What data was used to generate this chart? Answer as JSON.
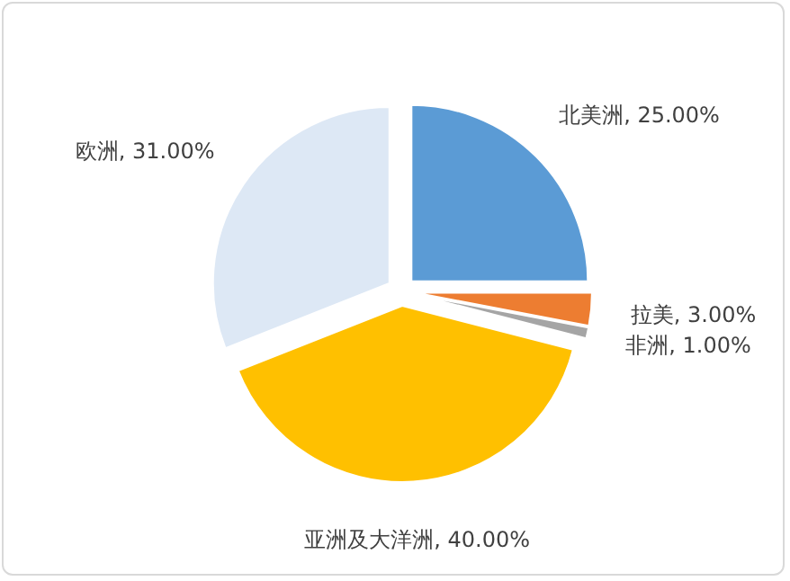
{
  "chart_data": {
    "type": "pie",
    "categories": [
      "北美洲",
      "拉美",
      "非洲",
      "亚洲及大洋洲",
      "欧洲"
    ],
    "values": [
      25,
      3,
      1,
      40,
      31
    ],
    "colors": [
      "#5b9bd5",
      "#ed7d31",
      "#a5a5a5",
      "#ffc000",
      "#dde8f5"
    ],
    "value_labels": [
      "25.00%",
      "3.00%",
      "1.00%",
      "40.00%",
      "31.00%"
    ]
  }
}
